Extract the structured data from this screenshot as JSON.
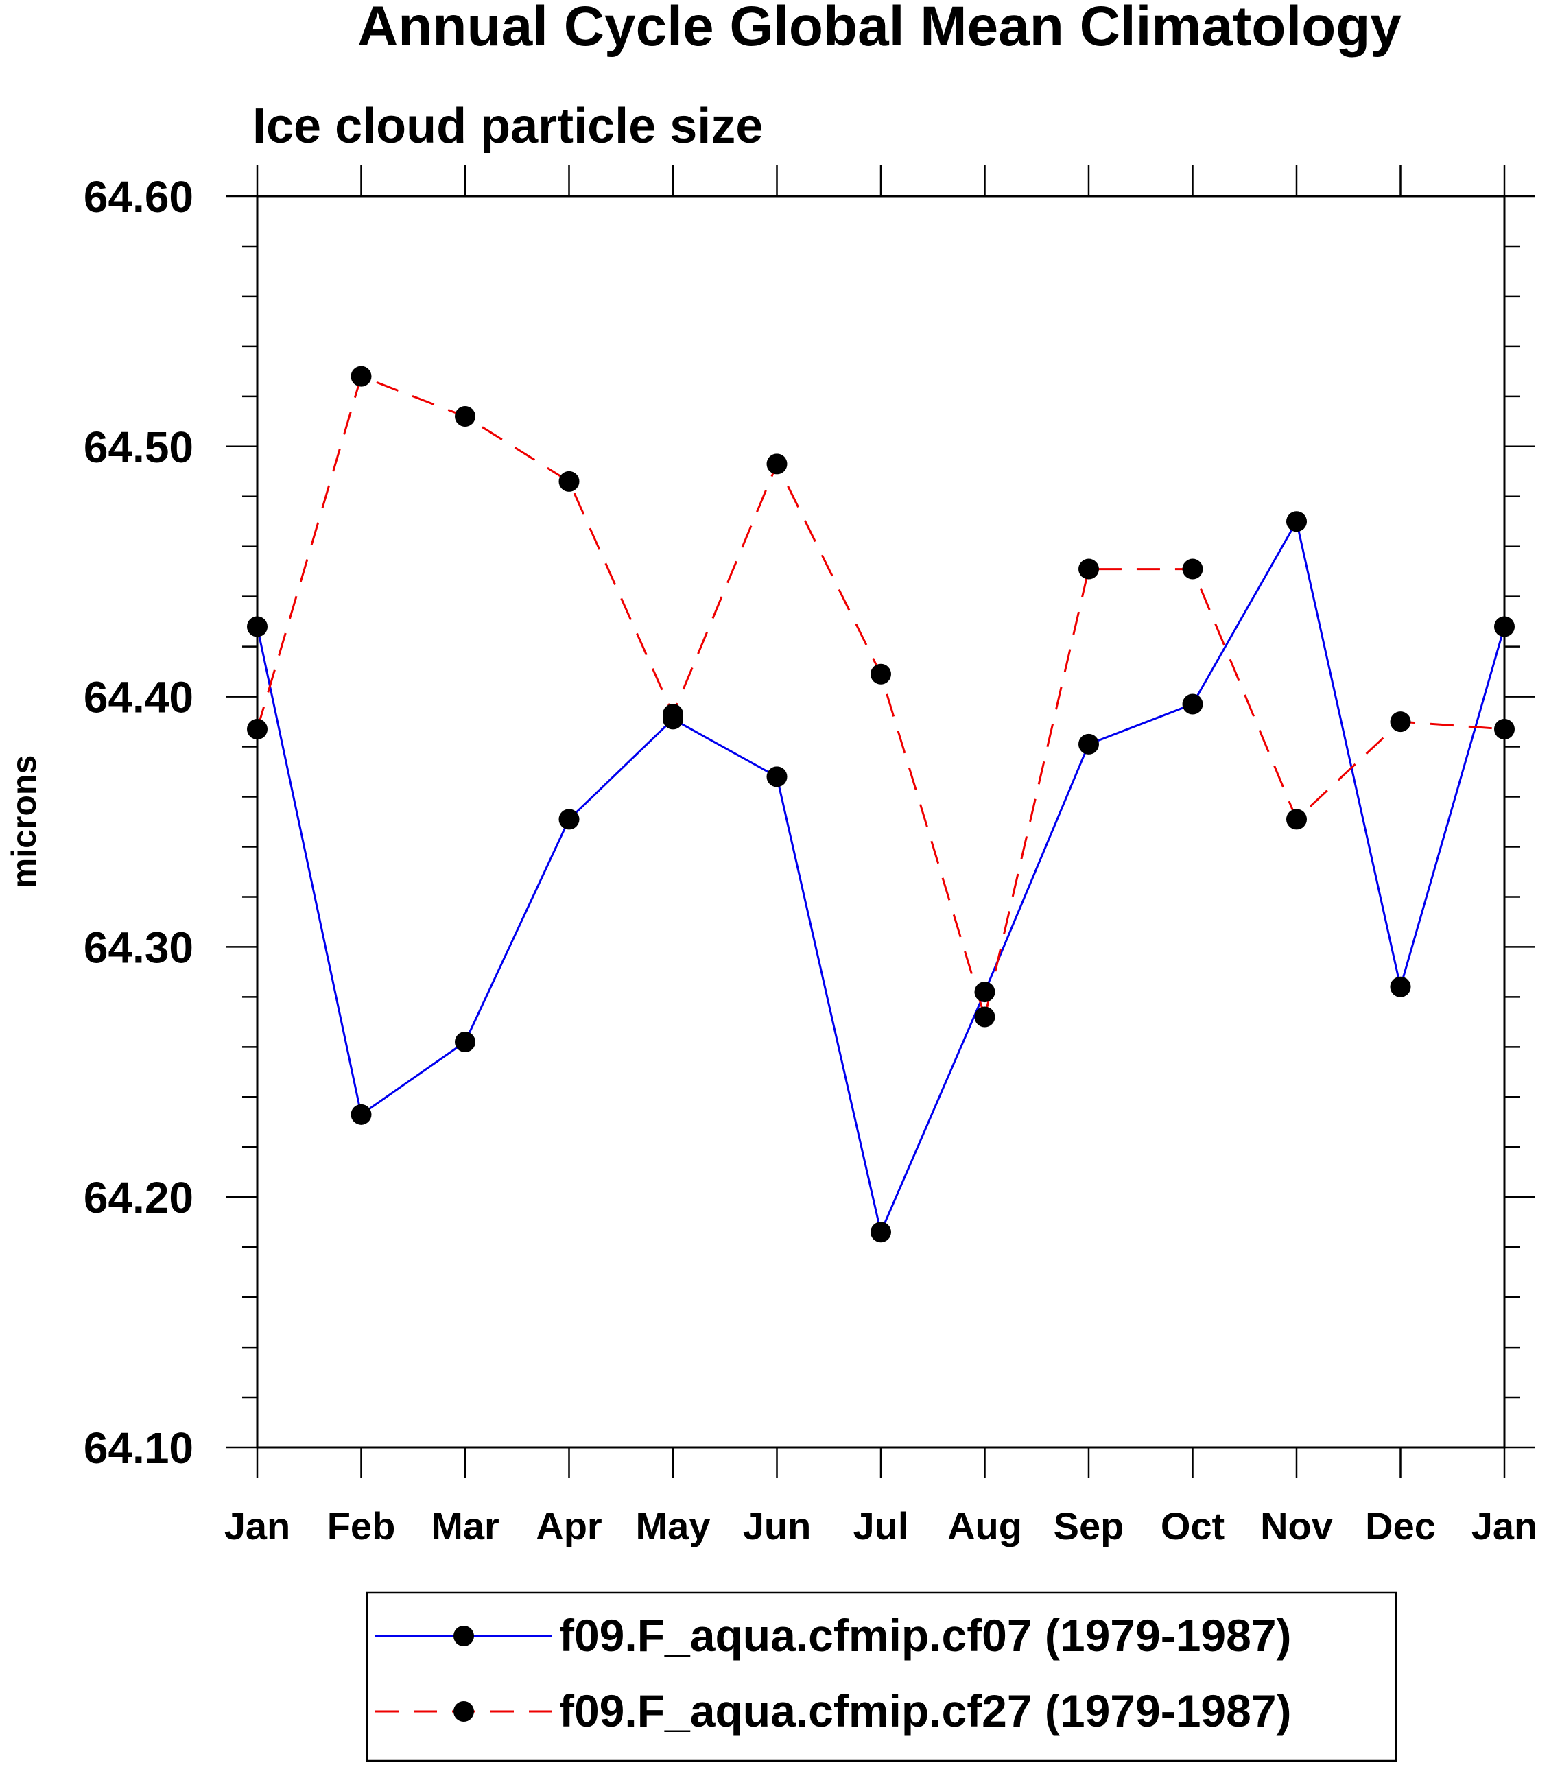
{
  "chart_data": {
    "type": "line",
    "title": "Annual Cycle Global Mean Climatology",
    "subtitle": "Ice cloud particle size",
    "xlabel": "",
    "ylabel": "microns",
    "categories": [
      "Jan",
      "Feb",
      "Mar",
      "Apr",
      "May",
      "Jun",
      "Jul",
      "Aug",
      "Sep",
      "Oct",
      "Nov",
      "Dec",
      "Jan"
    ],
    "ylim": [
      64.1,
      64.6
    ],
    "yticks": [
      "64.10",
      "64.20",
      "64.30",
      "64.40",
      "64.50",
      "64.60"
    ],
    "grid": false,
    "legend_position": "bottom",
    "series": [
      {
        "name": "f09.F_aqua.cfmip.cf07 (1979-1987)",
        "color": "#0000ee",
        "dash": "solid",
        "marker": "filled-circle",
        "values": [
          64.428,
          64.233,
          64.262,
          64.351,
          64.391,
          64.368,
          64.186,
          64.282,
          64.381,
          64.397,
          64.47,
          64.284,
          64.428
        ]
      },
      {
        "name": "f09.F_aqua.cfmip.cf27 (1979-1987)",
        "color": "#ee0000",
        "dash": "dashed",
        "marker": "filled-circle",
        "values": [
          64.387,
          64.528,
          64.512,
          64.486,
          64.393,
          64.493,
          64.409,
          64.272,
          64.451,
          64.451,
          64.351,
          64.39,
          64.387
        ]
      }
    ]
  }
}
